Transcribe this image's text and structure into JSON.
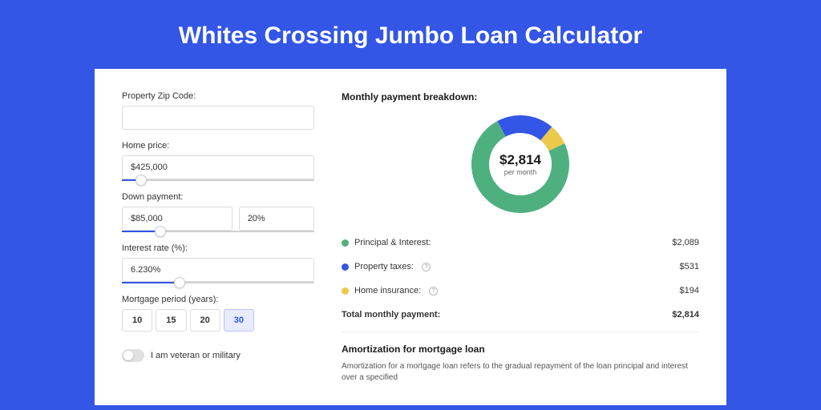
{
  "page": {
    "title": "Whites Crossing Jumbo Loan Calculator",
    "background_color": "#3356e6"
  },
  "form": {
    "zip": {
      "label": "Property Zip Code:",
      "value": ""
    },
    "home_price": {
      "label": "Home price:",
      "value": "$425,000",
      "slider_percent": 10
    },
    "down_payment": {
      "label": "Down payment:",
      "amount": "$85,000",
      "percent": "20%",
      "slider_percent": 20
    },
    "interest_rate": {
      "label": "Interest rate (%):",
      "value": "6.230%",
      "slider_percent": 30
    },
    "mortgage_period": {
      "label": "Mortgage period (years):",
      "options": [
        "10",
        "15",
        "20",
        "30"
      ],
      "selected": "30"
    },
    "veteran": {
      "label": "I am veteran or military",
      "checked": false
    }
  },
  "breakdown": {
    "title": "Monthly payment breakdown:",
    "total_amount": "$2,814",
    "total_sub": "per month",
    "items": [
      {
        "label": "Principal & Interest:",
        "value": "$2,089",
        "color": "#4fb07f",
        "percent": 74.2,
        "info": false
      },
      {
        "label": "Property taxes:",
        "value": "$531",
        "color": "#3356e6",
        "percent": 18.9,
        "info": true
      },
      {
        "label": "Home insurance:",
        "value": "$194",
        "color": "#ecc94b",
        "percent": 6.9,
        "info": true
      }
    ],
    "total_row": {
      "label": "Total monthly payment:",
      "value": "$2,814"
    }
  },
  "amortization": {
    "title": "Amortization for mortgage loan",
    "text": "Amortization for a mortgage loan refers to the gradual repayment of the loan principal and interest over a specified"
  },
  "donut": {
    "radius": 50,
    "stroke_width": 22,
    "background": "#ffffff"
  }
}
